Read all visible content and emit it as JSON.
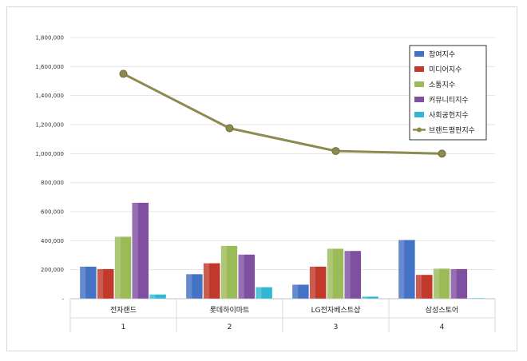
{
  "chart_data": {
    "type": "bar",
    "categories": [
      "전자랜드",
      "롯데하이마트",
      "LG전자베스트샵",
      "삼성스토어"
    ],
    "category_numbers": [
      "1",
      "2",
      "3",
      "4"
    ],
    "series": [
      {
        "name": "참여지수",
        "type": "bar",
        "color": "#4472c4",
        "values": [
          222000,
          170000,
          97000,
          405000
        ]
      },
      {
        "name": "미디어지수",
        "type": "bar",
        "color": "#c0392b",
        "values": [
          205000,
          245000,
          222000,
          165000
        ]
      },
      {
        "name": "소통지수",
        "type": "bar",
        "color": "#9bbb59",
        "values": [
          428000,
          365000,
          345000,
          208000
        ]
      },
      {
        "name": "커뮤니티지수",
        "type": "bar",
        "color": "#7f4fa1",
        "values": [
          662000,
          305000,
          330000,
          205000
        ]
      },
      {
        "name": "사회공헌지수",
        "type": "bar",
        "color": "#31b7d4",
        "values": [
          30000,
          80000,
          15000,
          5000
        ]
      },
      {
        "name": "브랜드평판지수",
        "type": "line",
        "color": "#8c8a4e",
        "values": [
          1550000,
          1175000,
          1018000,
          1000000
        ]
      }
    ],
    "y_ticks": [
      "-",
      "200,000",
      "400,000",
      "600,000",
      "800,000",
      "1,000,000",
      "1,200,000",
      "1,400,000",
      "1,600,000",
      "1,800,000"
    ],
    "ylim": [
      0,
      1800000
    ],
    "grid": true,
    "legend_position": "top-right"
  }
}
